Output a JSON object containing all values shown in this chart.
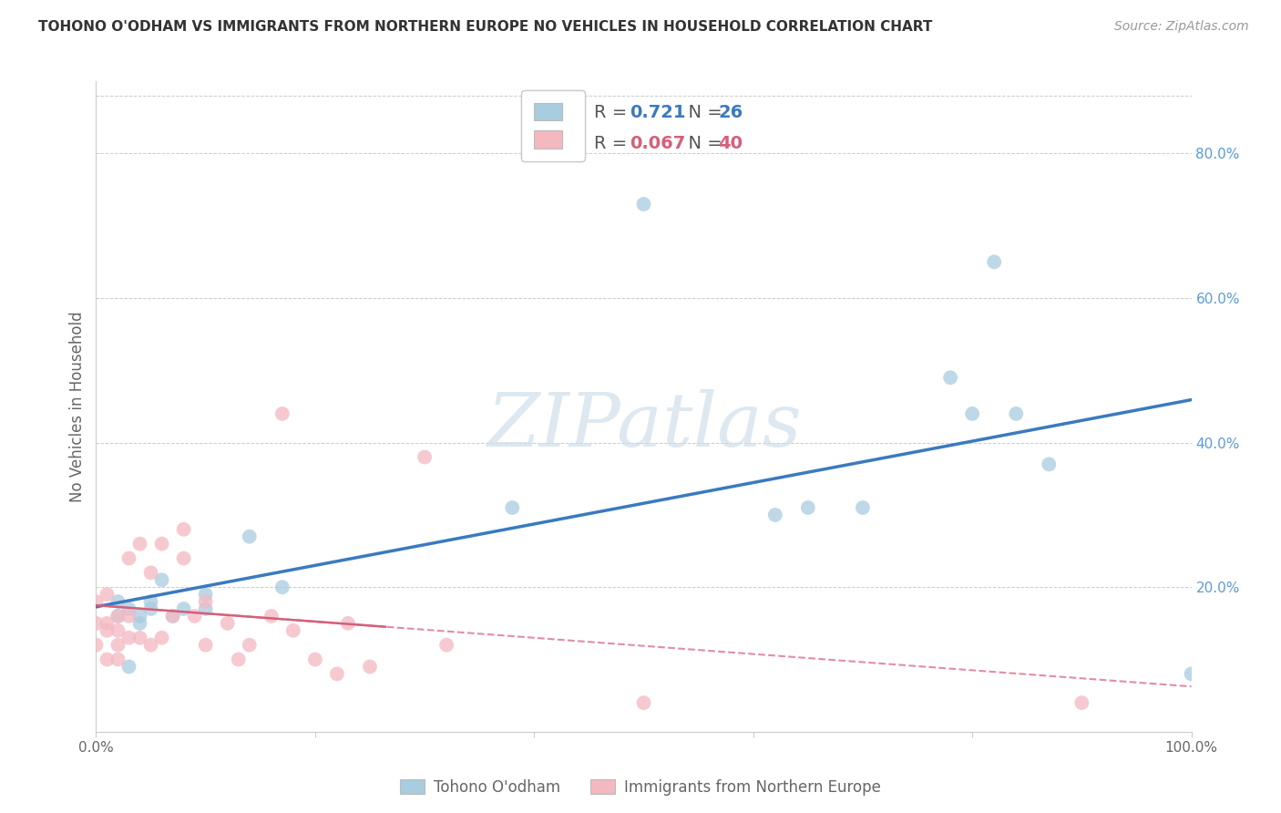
{
  "title": "TOHONO O'ODHAM VS IMMIGRANTS FROM NORTHERN EUROPE NO VEHICLES IN HOUSEHOLD CORRELATION CHART",
  "source": "Source: ZipAtlas.com",
  "ylabel": "No Vehicles in Household",
  "blue_R": 0.721,
  "blue_N": 26,
  "pink_R": 0.067,
  "pink_N": 40,
  "blue_scatter_color": "#a8cce0",
  "pink_scatter_color": "#f4b8c1",
  "blue_line_color": "#3a7abf",
  "pink_solid_color": "#d45f7a",
  "pink_dash_color": "#d45f7a",
  "right_tick_color": "#5b9bd5",
  "watermark_color": "#ccdde8",
  "title_color": "#333333",
  "source_color": "#999999",
  "label_color": "#666666",
  "grid_color": "#cccccc",
  "xlim": [
    0.0,
    1.0
  ],
  "ylim": [
    0.0,
    0.9
  ],
  "blue_scatter_x": [
    0.02,
    0.02,
    0.03,
    0.04,
    0.04,
    0.05,
    0.05,
    0.06,
    0.07,
    0.08,
    0.1,
    0.1,
    0.14,
    0.17,
    0.38,
    0.5,
    0.62,
    0.65,
    0.7,
    0.78,
    0.8,
    0.82,
    0.84,
    0.87,
    1.0,
    0.03
  ],
  "blue_scatter_y": [
    0.16,
    0.18,
    0.17,
    0.15,
    0.16,
    0.17,
    0.18,
    0.21,
    0.16,
    0.17,
    0.17,
    0.19,
    0.27,
    0.2,
    0.31,
    0.73,
    0.3,
    0.31,
    0.31,
    0.49,
    0.44,
    0.65,
    0.44,
    0.37,
    0.08,
    0.09
  ],
  "pink_scatter_x": [
    0.0,
    0.0,
    0.0,
    0.01,
    0.01,
    0.01,
    0.01,
    0.02,
    0.02,
    0.02,
    0.02,
    0.03,
    0.03,
    0.03,
    0.04,
    0.04,
    0.05,
    0.05,
    0.06,
    0.06,
    0.07,
    0.08,
    0.08,
    0.09,
    0.1,
    0.1,
    0.12,
    0.13,
    0.14,
    0.16,
    0.17,
    0.18,
    0.2,
    0.22,
    0.23,
    0.25,
    0.3,
    0.32,
    0.5,
    0.9
  ],
  "pink_scatter_y": [
    0.12,
    0.15,
    0.18,
    0.1,
    0.14,
    0.15,
    0.19,
    0.1,
    0.12,
    0.14,
    0.16,
    0.13,
    0.16,
    0.24,
    0.13,
    0.26,
    0.12,
    0.22,
    0.13,
    0.26,
    0.16,
    0.24,
    0.28,
    0.16,
    0.12,
    0.18,
    0.15,
    0.1,
    0.12,
    0.16,
    0.44,
    0.14,
    0.1,
    0.08,
    0.15,
    0.09,
    0.38,
    0.12,
    0.04,
    0.04
  ],
  "legend_blue_label": "R =  0.721   N = 26",
  "legend_pink_label": "R = 0.067   N = 40",
  "bottom_legend_blue": "Tohono O'odham",
  "bottom_legend_pink": "Immigrants from Northern Europe"
}
